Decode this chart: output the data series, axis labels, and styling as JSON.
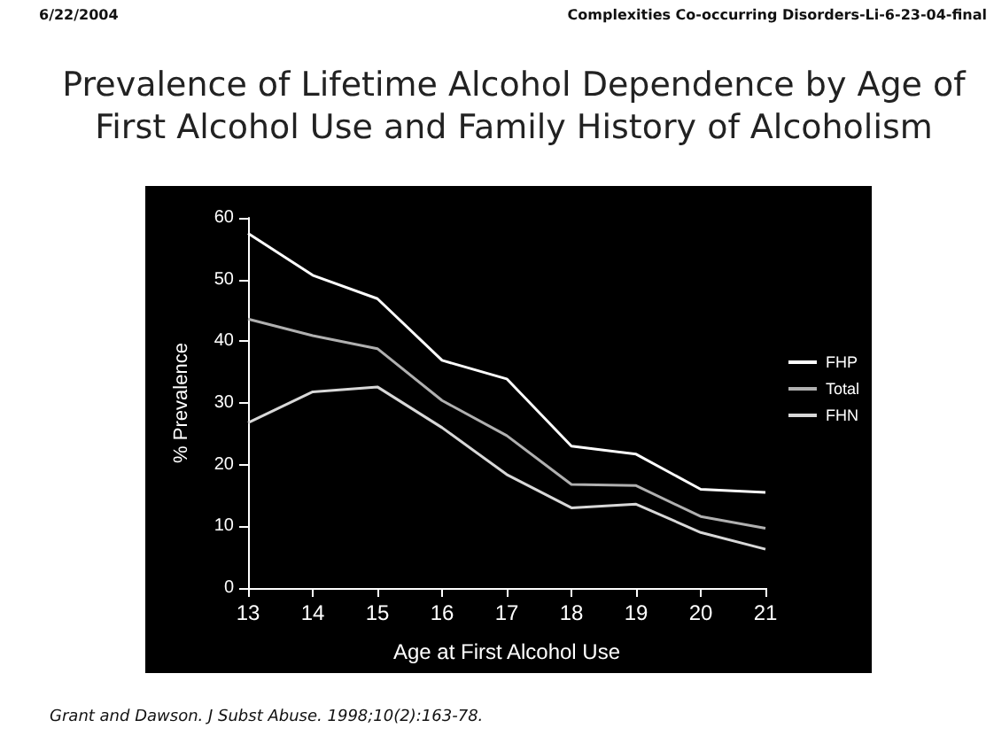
{
  "chart_data": {
    "type": "line",
    "title": "Prevalence of Lifetime Alcohol Dependence by Age of First Alcohol Use and Family History of Alcoholism",
    "xlabel": "Age at First Alcohol Use",
    "ylabel": "% Prevalence",
    "categories": [
      "13",
      "14",
      "15",
      "16",
      "17",
      "18",
      "19",
      "20",
      "21"
    ],
    "series": [
      {
        "name": "FHP",
        "color": "#ffffff",
        "values": [
          57.5,
          50.7,
          46.9,
          36.9,
          33.9,
          23,
          21.7,
          16,
          15.5
        ]
      },
      {
        "name": "Total",
        "color": "#b0b0b0",
        "values": [
          43.6,
          40.9,
          38.8,
          30.4,
          24.7,
          16.8,
          16.6,
          11.6,
          9.7
        ]
      },
      {
        "name": "FHN",
        "color": "#d8d8d8",
        "values": [
          26.8,
          31.8,
          32.6,
          26,
          18.4,
          13,
          13.6,
          9,
          6.3
        ]
      }
    ],
    "ylim": [
      0,
      60
    ],
    "yticks": [
      0,
      10,
      20,
      30,
      40,
      50,
      60
    ],
    "legend": "right",
    "grid": false,
    "marker": "none",
    "line_style": "solid",
    "annotations": [
      "6/22/2004",
      "Complexities Co-occurring Disorders-Li-6-23-04-final",
      "Grant and Dawson. J Subst Abuse. 1998;10(2):163-78."
    ]
  }
}
